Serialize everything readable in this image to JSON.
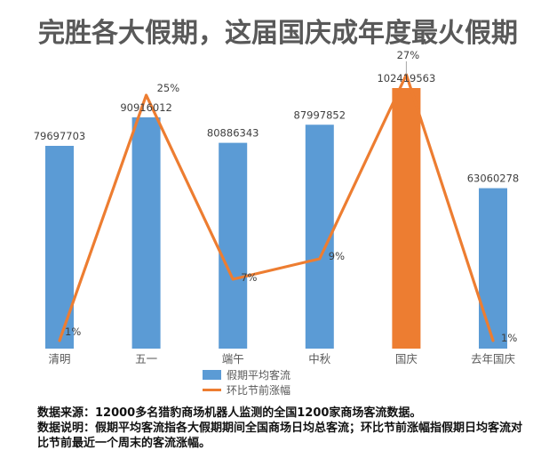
{
  "title": "完胜各大假期，这届国庆成年度最火假期",
  "chart_data": {
    "type": "combo-bar-line",
    "categories": [
      "清明",
      "五一",
      "端午",
      "中秋",
      "国庆",
      "去年国庆"
    ],
    "series": [
      {
        "name": "假期平均客流",
        "type": "bar",
        "values": [
          79697703,
          90916012,
          80886343,
          87997852,
          102419563,
          63060278
        ],
        "value_labels": [
          "79697703",
          "90916012",
          "80886343",
          "87997852",
          "102419563",
          "63060278"
        ],
        "bar_colors": [
          "#5B9BD5",
          "#5B9BD5",
          "#5B9BD5",
          "#5B9BD5",
          "#ED7D31",
          "#5B9BD5"
        ],
        "highlight_index": 4
      },
      {
        "name": "环比节前涨幅",
        "type": "line",
        "values_pct": [
          1,
          25,
          7,
          9,
          27,
          1
        ],
        "point_labels": [
          "1%",
          "25%",
          "7%",
          "9%",
          "27%",
          "1%"
        ],
        "color": "#ED7D31"
      }
    ],
    "legend_position": "bottom",
    "gridlines": false,
    "axes_visible": false,
    "y_axis_labels_visible": false
  },
  "footer": {
    "line1": "数据来源：12000多名猎豹商场机器人监测的全国1200家商场客流数据。",
    "line2": "数据说明：假期平均客流指各大假期期间全国商场日均总客流；环比节前涨幅指假期日均客流对比节前最近一个周末的客流涨幅。"
  },
  "colors": {
    "bar_blue": "#5B9BD5",
    "highlight_orange": "#ED7D31",
    "title_gray": "#595959",
    "label_dark": "#404040",
    "category_gray": "#595959",
    "callout_gray": "#A6A6A6",
    "footer_black": "#111111"
  }
}
